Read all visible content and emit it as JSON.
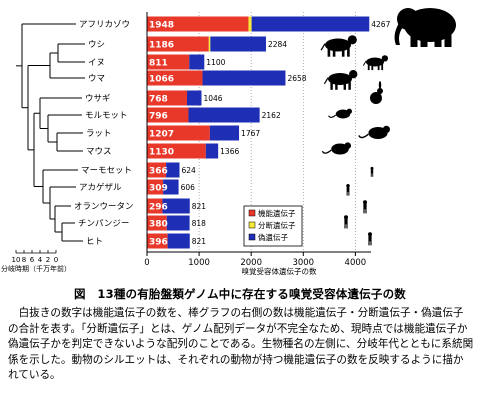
{
  "chart_data": {
    "type": "bar",
    "stacked": true,
    "orientation": "horizontal",
    "categories": [
      "アフリカゾウ",
      "ウシ",
      "イヌ",
      "ウマ",
      "ウサギ",
      "モルモット",
      "ラット",
      "マウス",
      "マーモセット",
      "アカゲザル",
      "オランウータン",
      "チンパンジー",
      "ヒト"
    ],
    "series": [
      {
        "name": "機能遺伝子",
        "color": "#e8382a",
        "values": [
          1948,
          1186,
          811,
          1066,
          768,
          796,
          1207,
          1130,
          366,
          309,
          296,
          380,
          396
        ]
      },
      {
        "name": "分断遺伝子",
        "color": "#f2e83a",
        "values": [
          null,
          null,
          null,
          null,
          null,
          null,
          null,
          null,
          null,
          null,
          null,
          null,
          null
        ]
      },
      {
        "name": "偽遺伝子",
        "color": "#1f2fb5",
        "values": [
          null,
          null,
          null,
          null,
          null,
          null,
          null,
          null,
          null,
          null,
          null,
          null,
          null
        ]
      }
    ],
    "totals": [
      4267,
      2284,
      1100,
      2658,
      1046,
      2162,
      1767,
      1366,
      624,
      606,
      821,
      818,
      821
    ],
    "xlabel": "嗅覚受容体遺伝子の数",
    "xlim": [
      0,
      4300
    ],
    "xticks": [
      0,
      1000,
      2000,
      3000,
      4000
    ],
    "grid": "vertical dotted",
    "legend_position": "bottom-right inside plot",
    "tree_axis": {
      "ticks": [
        "10",
        "8",
        "6",
        "4",
        "2",
        "0"
      ],
      "label": "分岐時期（千万年前）"
    }
  },
  "caption": "図　13種の有胎盤類ゲノム中に存在する嗅覚受容体遺伝子の数",
  "description": "白抜きの数字は機能遺伝子の数を、棒グラフの右側の数は機能遺伝子・分断遺伝子・偽遺伝子の合計を表す。「分断遺伝子」とは、ゲノム配列データが不完全なため、現時点では機能遺伝子か偽遺伝子かを判定できないような配列のことである。生物種名の左側に、分岐年代とともに系統関係を示した。動物のシルエットは、それぞれの動物が持つ機能遺伝子の数を反映するように描かれている。"
}
